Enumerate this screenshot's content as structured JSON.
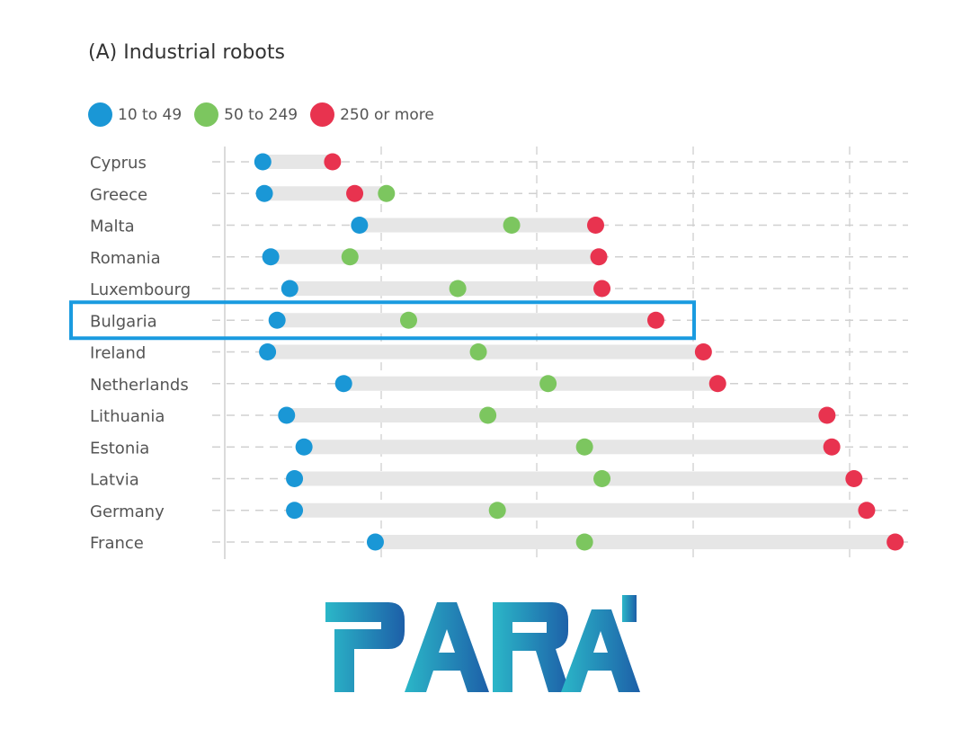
{
  "chart_data": {
    "type": "scatter",
    "title": "(A) Industrial robots",
    "xlabel": "",
    "ylabel": "",
    "grid": true,
    "legend_position": "top-left",
    "series": [
      {
        "name": "10 to 49",
        "color": "#1a97d6"
      },
      {
        "name": "50 to 249",
        "color": "#7cc65f"
      },
      {
        "name": "250 or more",
        "color": "#e8334f"
      }
    ],
    "categories": [
      "Cyprus",
      "Greece",
      "Malta",
      "Romania",
      "Luxembourg",
      "Bulgaria",
      "Ireland",
      "Netherlands",
      "Lithuania",
      "Estonia",
      "Latvia",
      "Germany",
      "France"
    ],
    "rows": [
      {
        "country": "Cyprus",
        "s1": 2.4,
        "s2": null,
        "s3": 6.8
      },
      {
        "country": "Greece",
        "s1": 2.5,
        "s2": 10.2,
        "s3": 8.2
      },
      {
        "country": "Malta",
        "s1": 8.5,
        "s2": 18.1,
        "s3": 23.4
      },
      {
        "country": "Romania",
        "s1": 2.9,
        "s2": 7.9,
        "s3": 23.6
      },
      {
        "country": "Luxembourg",
        "s1": 4.1,
        "s2": 14.7,
        "s3": 23.8
      },
      {
        "country": "Bulgaria",
        "s1": 3.3,
        "s2": 11.6,
        "s3": 27.2
      },
      {
        "country": "Ireland",
        "s1": 2.7,
        "s2": 16.0,
        "s3": 30.2
      },
      {
        "country": "Netherlands",
        "s1": 7.5,
        "s2": 20.4,
        "s3": 31.1
      },
      {
        "country": "Lithuania",
        "s1": 3.9,
        "s2": 16.6,
        "s3": 38.0
      },
      {
        "country": "Estonia",
        "s1": 5.0,
        "s2": 22.7,
        "s3": 38.3
      },
      {
        "country": "Latvia",
        "s1": 4.4,
        "s2": 23.8,
        "s3": 39.7
      },
      {
        "country": "Germany",
        "s1": 4.4,
        "s2": 17.2,
        "s3": 40.5
      },
      {
        "country": "France",
        "s1": 9.5,
        "s2": 22.7,
        "s3": 42.3
      }
    ],
    "xlim": [
      0,
      43
    ],
    "highlight": "Bulgaria"
  },
  "logo": {
    "text": "PARAi"
  }
}
